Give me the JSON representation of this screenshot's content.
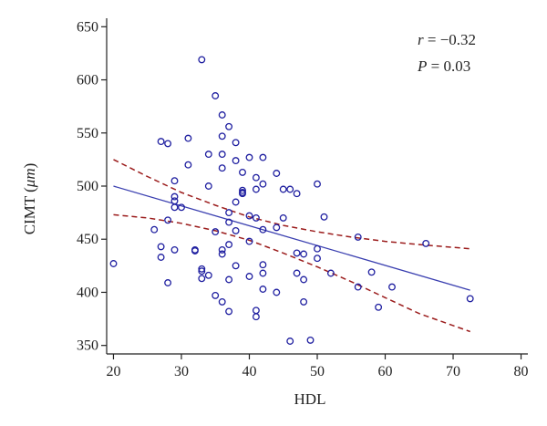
{
  "chart_data": {
    "type": "scatter",
    "xlabel": "HDL",
    "ylabel_prefix": "CIMT (",
    "ylabel_unit": "μm",
    "ylabel_suffix": ")",
    "xlim": [
      19,
      81
    ],
    "ylim": [
      342,
      658
    ],
    "xticks": [
      20,
      30,
      40,
      50,
      60,
      70,
      80
    ],
    "yticks": [
      350,
      400,
      450,
      500,
      550,
      600,
      650
    ],
    "annotations": {
      "r_symbol": "r",
      "r_value": " = −0.32",
      "p_symbol": "P",
      "p_value": " = 0.03"
    },
    "colors": {
      "points": "#1f1fa0",
      "regression": "#3a3fb0",
      "confidence": "#9b1c1c",
      "axis": "#222222"
    },
    "regression_line": {
      "x": [
        20,
        72.5
      ],
      "y": [
        500,
        402
      ]
    },
    "confidence_upper": {
      "x": [
        20,
        25,
        30,
        35,
        40,
        45,
        50,
        55,
        60,
        65,
        72.5
      ],
      "y": [
        525,
        509,
        494,
        482,
        471,
        463,
        457,
        452,
        448,
        445,
        441
      ]
    },
    "confidence_lower": {
      "x": [
        20,
        25,
        30,
        35,
        40,
        45,
        50,
        55,
        60,
        65,
        72.5
      ],
      "y": [
        473,
        470,
        465,
        458,
        449,
        437,
        424,
        410,
        395,
        380,
        363
      ]
    },
    "points": [
      [
        20,
        427
      ],
      [
        26,
        459
      ],
      [
        27,
        542
      ],
      [
        27,
        443
      ],
      [
        27,
        433
      ],
      [
        28,
        540
      ],
      [
        28,
        468
      ],
      [
        28,
        409
      ],
      [
        29,
        505
      ],
      [
        29,
        490
      ],
      [
        29,
        486
      ],
      [
        29,
        480
      ],
      [
        29,
        440
      ],
      [
        30,
        480
      ],
      [
        31,
        545
      ],
      [
        31,
        520
      ],
      [
        32,
        440
      ],
      [
        32,
        439
      ],
      [
        33,
        619
      ],
      [
        33,
        422
      ],
      [
        33,
        420
      ],
      [
        33,
        413
      ],
      [
        34,
        530
      ],
      [
        34,
        500
      ],
      [
        34,
        416
      ],
      [
        35,
        585
      ],
      [
        35,
        397
      ],
      [
        35,
        457
      ],
      [
        36,
        567
      ],
      [
        36,
        547
      ],
      [
        36,
        530
      ],
      [
        36,
        517
      ],
      [
        36,
        440
      ],
      [
        36,
        436
      ],
      [
        36,
        391
      ],
      [
        37,
        556
      ],
      [
        37,
        475
      ],
      [
        37,
        466
      ],
      [
        37,
        445
      ],
      [
        37,
        412
      ],
      [
        37,
        382
      ],
      [
        38,
        541
      ],
      [
        38,
        524
      ],
      [
        38,
        485
      ],
      [
        38,
        458
      ],
      [
        38,
        425
      ],
      [
        39,
        513
      ],
      [
        39,
        496
      ],
      [
        39,
        494
      ],
      [
        39,
        493
      ],
      [
        40,
        527
      ],
      [
        40,
        472
      ],
      [
        40,
        448
      ],
      [
        40,
        415
      ],
      [
        41,
        508
      ],
      [
        41,
        497
      ],
      [
        41,
        470
      ],
      [
        41,
        383
      ],
      [
        41,
        377
      ],
      [
        42,
        527
      ],
      [
        42,
        502
      ],
      [
        42,
        459
      ],
      [
        42,
        426
      ],
      [
        42,
        418
      ],
      [
        42,
        403
      ],
      [
        44,
        512
      ],
      [
        44,
        461
      ],
      [
        44,
        400
      ],
      [
        45,
        497
      ],
      [
        45,
        470
      ],
      [
        46,
        497
      ],
      [
        46,
        354
      ],
      [
        47,
        493
      ],
      [
        47,
        437
      ],
      [
        47,
        418
      ],
      [
        48,
        436
      ],
      [
        48,
        412
      ],
      [
        48,
        391
      ],
      [
        49,
        355
      ],
      [
        50,
        502
      ],
      [
        50,
        441
      ],
      [
        50,
        432
      ],
      [
        51,
        471
      ],
      [
        52,
        418
      ],
      [
        56,
        452
      ],
      [
        56,
        405
      ],
      [
        58,
        419
      ],
      [
        59,
        386
      ],
      [
        61,
        405
      ],
      [
        66,
        446
      ],
      [
        72.5,
        394
      ]
    ]
  }
}
